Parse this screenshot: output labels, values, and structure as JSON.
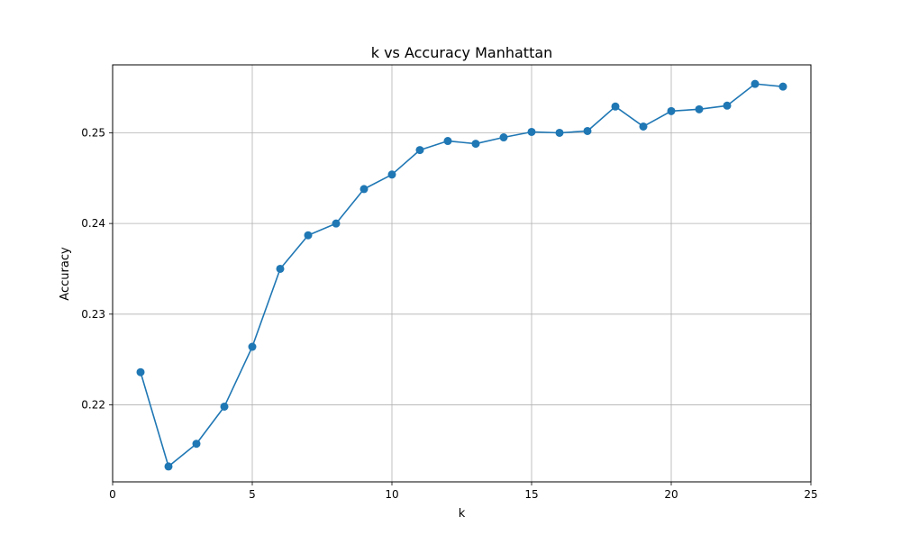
{
  "chart_data": {
    "type": "line",
    "title": "k vs Accuracy Manhattan",
    "xlabel": "k",
    "ylabel": "Accuracy",
    "xlim": [
      0,
      25
    ],
    "ylim": [
      0.2115,
      0.2575
    ],
    "xticks": [
      0,
      5,
      10,
      15,
      20,
      25
    ],
    "xtick_labels": [
      "0",
      "5",
      "10",
      "15",
      "20",
      "25"
    ],
    "yticks": [
      0.22,
      0.23,
      0.24,
      0.25
    ],
    "ytick_labels": [
      "0.22",
      "0.23",
      "0.24",
      "0.25"
    ],
    "grid": true,
    "color": "#1f77b4",
    "marker": "circle",
    "series": [
      {
        "x": [
          1,
          2,
          3,
          4,
          5,
          6,
          7,
          8,
          9,
          10,
          11,
          12,
          13,
          14,
          15,
          16,
          17,
          18,
          19,
          20,
          21,
          22,
          23,
          24
        ],
        "values": [
          0.2236,
          0.2132,
          0.2157,
          0.2198,
          0.2264,
          0.235,
          0.2387,
          0.24,
          0.2438,
          0.2454,
          0.2481,
          0.2491,
          0.2488,
          0.2495,
          0.2501,
          0.25,
          0.2502,
          0.2529,
          0.2507,
          0.2524,
          0.2526,
          0.253,
          0.2554,
          0.2551
        ]
      }
    ]
  }
}
